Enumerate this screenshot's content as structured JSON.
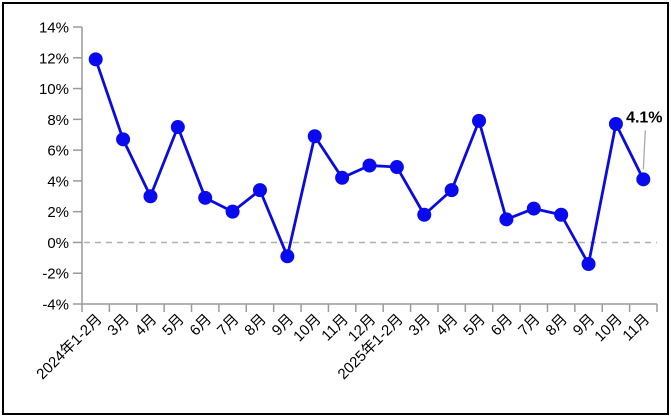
{
  "chart_data": {
    "type": "line",
    "categories": [
      "2024年1-2月",
      "3月",
      "4月",
      "5月",
      "6月",
      "7月",
      "8月",
      "9月",
      "10月",
      "11月",
      "12月",
      "2025年1-2月",
      "3月",
      "4月",
      "5月",
      "6月",
      "7月",
      "8月",
      "9月",
      "10月",
      "11月"
    ],
    "values": [
      11.9,
      6.7,
      3.0,
      7.5,
      2.9,
      2.0,
      3.4,
      -0.9,
      6.9,
      4.2,
      5.0,
      4.9,
      1.8,
      3.4,
      7.9,
      1.5,
      2.2,
      1.8,
      -1.4,
      7.7,
      4.1
    ],
    "title": "",
    "xlabel": "",
    "ylabel": "",
    "ylim": [
      -4,
      14
    ],
    "ytick_step": 2,
    "ytick_suffix": "%",
    "grid": false,
    "zero_line": {
      "value": 0,
      "style": "dashed"
    },
    "annotation": {
      "text": "4.1%",
      "target_index": 20
    },
    "legend": "none",
    "colors": {
      "line": "#0b0be0",
      "marker": "#0a0aee",
      "axis": "#9a9a9a",
      "zero_line": "#b0b0b0",
      "leader_line": "#a8a8a8",
      "label": "#000000",
      "background": "#ffffff",
      "border": "#000000"
    }
  }
}
